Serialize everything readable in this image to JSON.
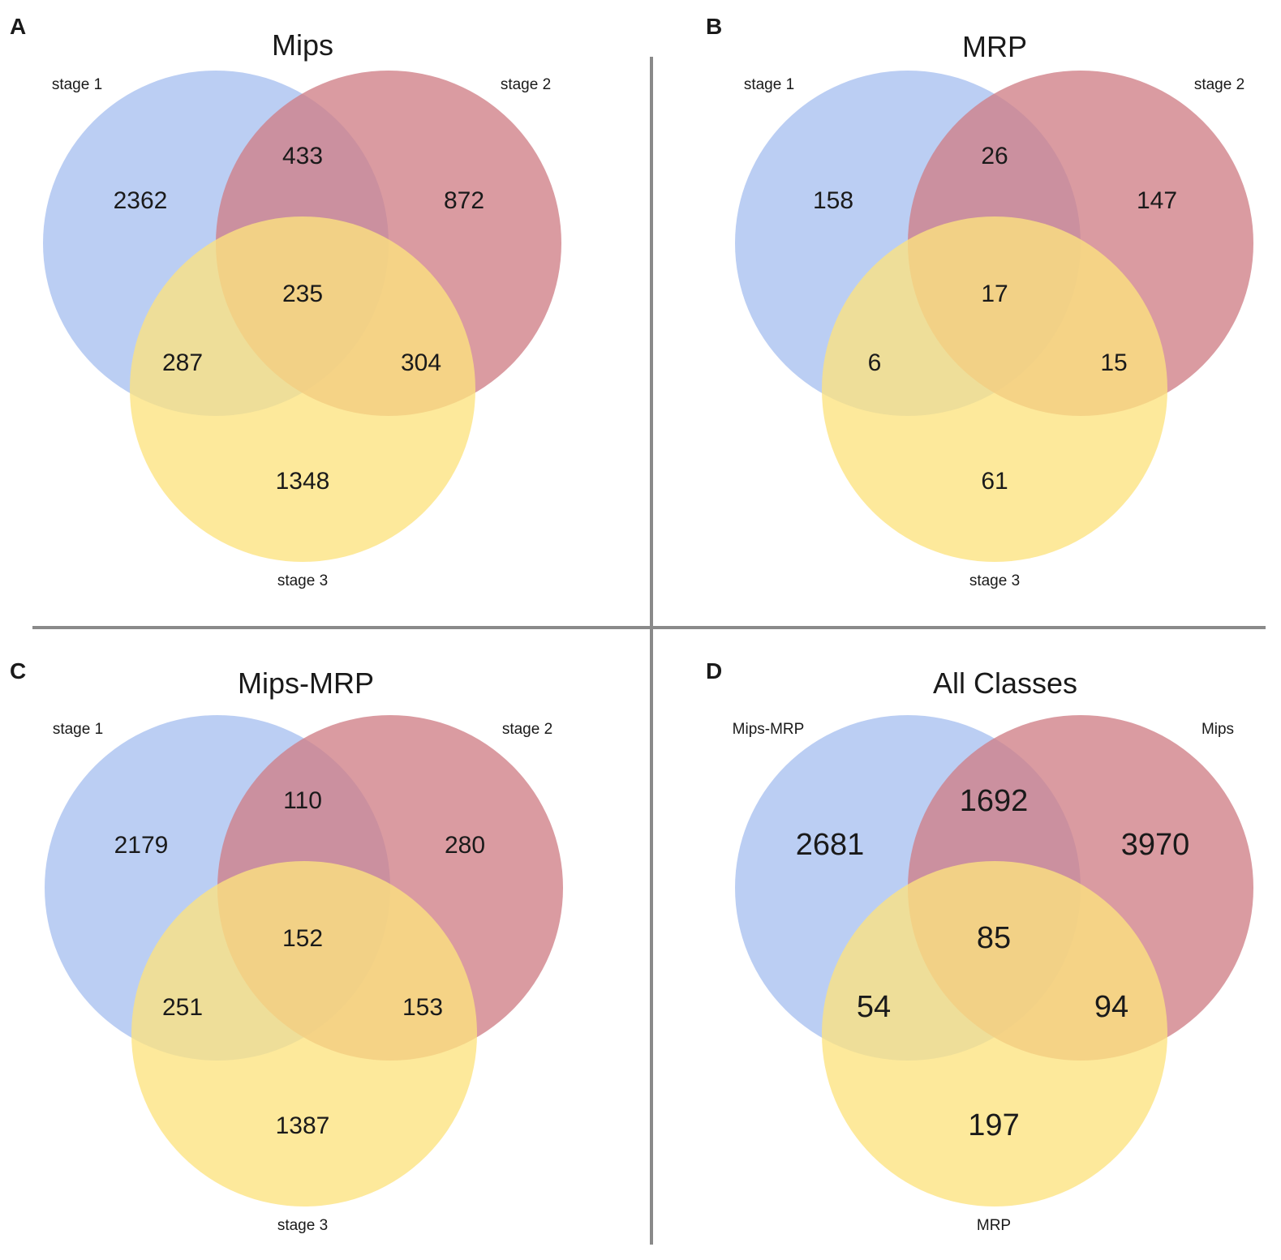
{
  "colors": {
    "set1": "#a8c0ef",
    "set2": "#d07f86",
    "set3": "#fde37f",
    "divider": "#8a8a8a"
  },
  "panels": [
    {
      "letter": "A",
      "title": "Mips",
      "sets": [
        "stage 1",
        "stage 2",
        "stage 3"
      ],
      "regions": {
        "only1": 2362,
        "only2": 872,
        "only3": 1348,
        "s12": 433,
        "s13": 287,
        "s23": 304,
        "s123": 235
      }
    },
    {
      "letter": "B",
      "title": "MRP",
      "sets": [
        "stage 1",
        "stage 2",
        "stage 3"
      ],
      "regions": {
        "only1": 158,
        "only2": 147,
        "only3": 61,
        "s12": 26,
        "s13": 6,
        "s23": 15,
        "s123": 17
      }
    },
    {
      "letter": "C",
      "title": "Mips-MRP",
      "sets": [
        "stage 1",
        "stage 2",
        "stage 3"
      ],
      "regions": {
        "only1": 2179,
        "only2": 280,
        "only3": 1387,
        "s12": 110,
        "s13": 251,
        "s23": 153,
        "s123": 152
      }
    },
    {
      "letter": "D",
      "title": "All Classes",
      "sets": [
        "Mips-MRP",
        "Mips",
        "MRP"
      ],
      "regions": {
        "only1": 2681,
        "only2": 3970,
        "only3": 197,
        "s12": 1692,
        "s13": 54,
        "s23": 94,
        "s123": 85
      }
    }
  ]
}
